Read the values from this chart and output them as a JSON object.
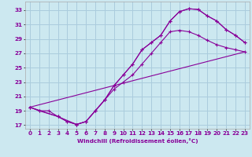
{
  "xlabel": "Windchill (Refroidissement éolien,°C)",
  "bg_color": "#cce8f0",
  "grid_color": "#aaccdd",
  "line_color": "#880099",
  "xlim": [
    -0.5,
    23.5
  ],
  "ylim": [
    16.5,
    34.2
  ],
  "xticks": [
    0,
    1,
    2,
    3,
    4,
    5,
    6,
    7,
    8,
    9,
    10,
    11,
    12,
    13,
    14,
    15,
    16,
    17,
    18,
    19,
    20,
    21,
    22,
    23
  ],
  "yticks": [
    17,
    19,
    21,
    23,
    25,
    27,
    29,
    31,
    33
  ],
  "series1_x": [
    0,
    1,
    2,
    3,
    4,
    5,
    6,
    7,
    8,
    9,
    10,
    11,
    12,
    13,
    14,
    15,
    16,
    17,
    18,
    19,
    20,
    21,
    22,
    23
  ],
  "series1_y": [
    19.5,
    19.0,
    19.0,
    18.2,
    17.5,
    17.1,
    17.5,
    19.0,
    20.5,
    22.5,
    24.0,
    25.5,
    27.5,
    28.5,
    29.5,
    31.5,
    32.8,
    33.2,
    33.1,
    32.2,
    31.5,
    30.3,
    29.5,
    28.5
  ],
  "series2_x": [
    0,
    1,
    3,
    4,
    5,
    6,
    7,
    8,
    9,
    10,
    11,
    12,
    13,
    14,
    15,
    16,
    17,
    18,
    19,
    20,
    21,
    22,
    23
  ],
  "series2_y": [
    19.5,
    19.0,
    18.2,
    17.5,
    17.1,
    17.5,
    19.0,
    20.5,
    22.5,
    24.0,
    25.5,
    27.5,
    28.5,
    29.5,
    31.5,
    32.8,
    33.2,
    33.1,
    32.2,
    31.5,
    30.3,
    29.5,
    28.5
  ],
  "series3_x": [
    0,
    3,
    5,
    6,
    7,
    8,
    9,
    10,
    11,
    12,
    13,
    14,
    15,
    16,
    17,
    18,
    19,
    20,
    21,
    22,
    23
  ],
  "series3_y": [
    19.5,
    18.2,
    17.1,
    17.5,
    19.0,
    20.5,
    22.0,
    23.0,
    24.0,
    25.5,
    27.0,
    28.5,
    30.0,
    30.2,
    30.0,
    29.5,
    28.8,
    28.2,
    27.8,
    27.5,
    27.2
  ],
  "series4_x": [
    0,
    23
  ],
  "series4_y": [
    19.5,
    27.2
  ]
}
